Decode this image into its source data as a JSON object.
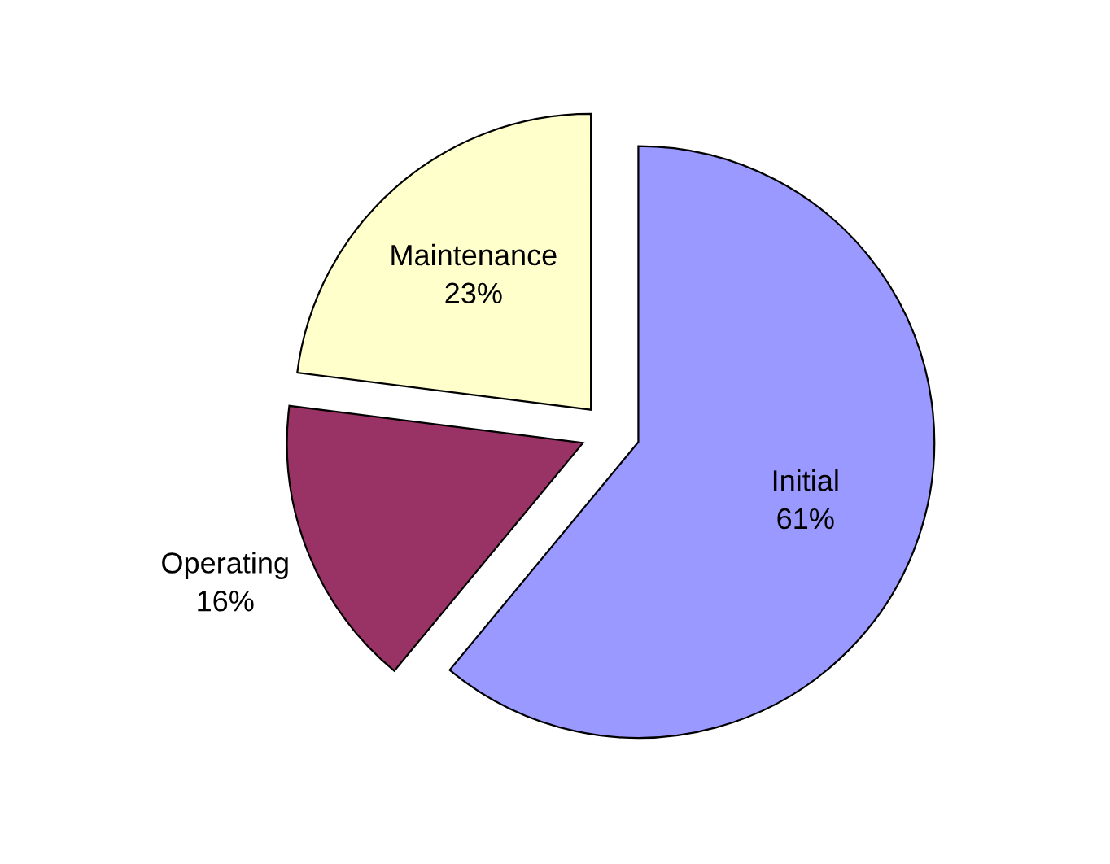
{
  "chart_data": {
    "type": "pie",
    "categories": [
      "Initial",
      "Operating",
      "Maintenance"
    ],
    "values": [
      61,
      16,
      23
    ],
    "value_labels": [
      "61%",
      "16%",
      "23%"
    ],
    "colors": [
      "#9999ff",
      "#993366",
      "#ffffcc"
    ]
  }
}
